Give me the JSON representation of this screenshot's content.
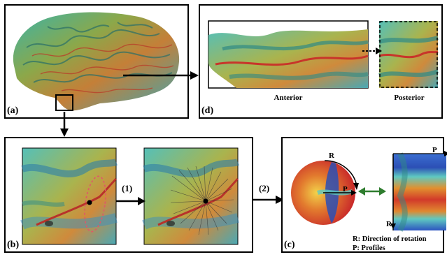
{
  "panels": {
    "a": {
      "label": "(a)"
    },
    "b": {
      "label": "(b)"
    },
    "c": {
      "label": "(c)"
    },
    "d": {
      "label": "(d)"
    }
  },
  "panel_d": {
    "anterior_caption": "Anterior",
    "posterior_caption": "Posterior"
  },
  "steps": {
    "step1": "(1)",
    "step2": "(2)"
  },
  "panel_c": {
    "r_axis_label": "R",
    "p_axis_label": "P",
    "legend_r": "R: Direction of rotation",
    "legend_p": "P: Profiles"
  },
  "colors": {
    "arrow_green": "#2e7d2e",
    "dashed_oval": "#e0566a"
  }
}
